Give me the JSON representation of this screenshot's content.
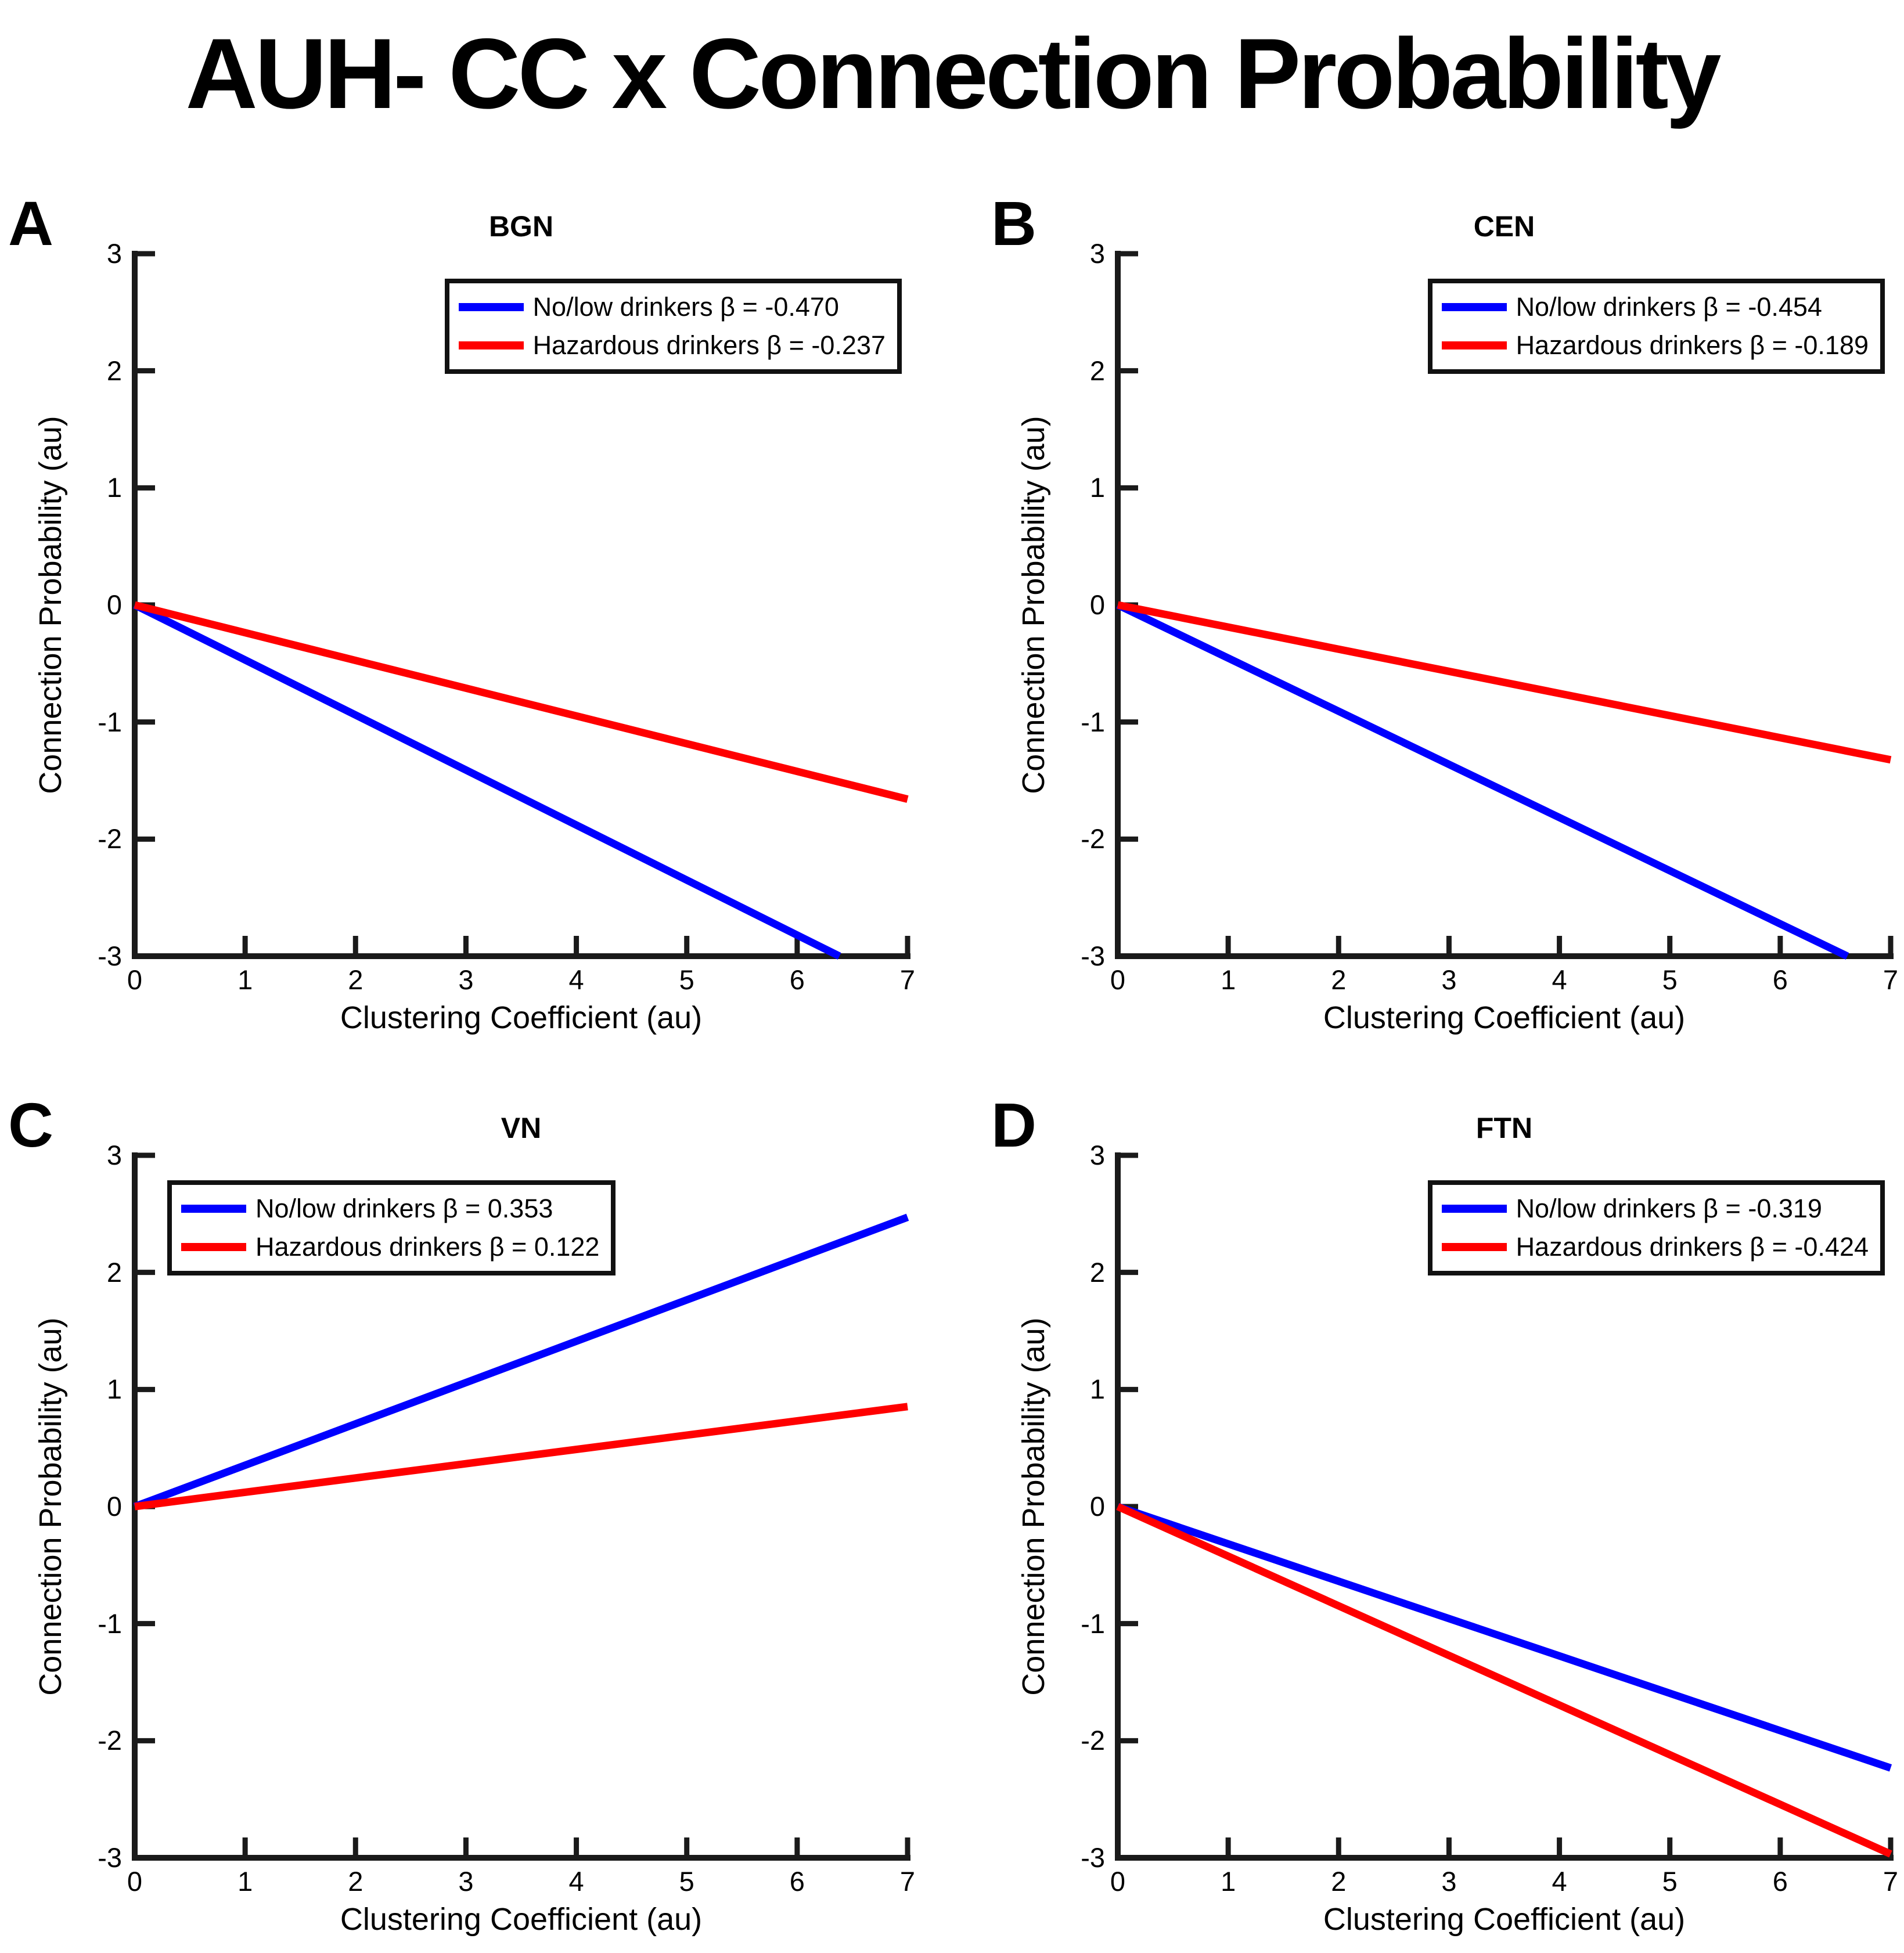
{
  "page_title": "AUH- CC x Connection Probability",
  "colors": {
    "no_low_drinkers": "#0000FF",
    "hazardous_drinkers": "#FF0000",
    "axis": "#1a1a1a",
    "background": "#ffffff"
  },
  "chart_data": [
    {
      "type": "line",
      "panel_label": "A",
      "title": "BGN",
      "xlabel": "Clustering Coefficient (au)",
      "ylabel": "Connection Probability (au)",
      "xlim": [
        0,
        7
      ],
      "ylim": [
        -3,
        3
      ],
      "xticks": [
        0,
        1,
        2,
        3,
        4,
        5,
        6,
        7
      ],
      "yticks": [
        -3,
        -2,
        -1,
        0,
        1,
        2,
        3
      ],
      "grid": false,
      "legend_position": "top-right",
      "series": [
        {
          "name": "No/low drinkers",
          "beta": -0.47,
          "legend_label": "No/low drinkers β = -0.470",
          "color": "#0000FF",
          "x": [
            0,
            6.383
          ],
          "y": [
            0,
            -3
          ]
        },
        {
          "name": "Hazardous drinkers",
          "beta": -0.237,
          "legend_label": "Hazardous drinkers β = -0.237",
          "color": "#FF0000",
          "x": [
            0,
            7
          ],
          "y": [
            0,
            -1.659
          ]
        }
      ]
    },
    {
      "type": "line",
      "panel_label": "B",
      "title": "CEN",
      "xlabel": "Clustering Coefficient (au)",
      "ylabel": "Connection Probability (au)",
      "xlim": [
        0,
        7
      ],
      "ylim": [
        -3,
        3
      ],
      "xticks": [
        0,
        1,
        2,
        3,
        4,
        5,
        6,
        7
      ],
      "yticks": [
        -3,
        -2,
        -1,
        0,
        1,
        2,
        3
      ],
      "grid": false,
      "legend_position": "top-right",
      "series": [
        {
          "name": "No/low drinkers",
          "beta": -0.454,
          "legend_label": "No/low drinkers β = -0.454",
          "color": "#0000FF",
          "x": [
            0,
            6.608
          ],
          "y": [
            0,
            -3
          ]
        },
        {
          "name": "Hazardous drinkers",
          "beta": -0.189,
          "legend_label": "Hazardous drinkers β = -0.189",
          "color": "#FF0000",
          "x": [
            0,
            7
          ],
          "y": [
            0,
            -1.323
          ]
        }
      ]
    },
    {
      "type": "line",
      "panel_label": "C",
      "title": "VN",
      "xlabel": "Clustering Coefficient (au)",
      "ylabel": "Connection Probability (au)",
      "xlim": [
        0,
        7
      ],
      "ylim": [
        -3,
        3
      ],
      "xticks": [
        0,
        1,
        2,
        3,
        4,
        5,
        6,
        7
      ],
      "yticks": [
        -3,
        -2,
        -1,
        0,
        1,
        2,
        3
      ],
      "grid": false,
      "legend_position": "top-left",
      "series": [
        {
          "name": "No/low drinkers",
          "beta": 0.353,
          "legend_label": "No/low drinkers β = 0.353",
          "color": "#0000FF",
          "x": [
            0,
            7
          ],
          "y": [
            0,
            2.471
          ]
        },
        {
          "name": "Hazardous drinkers",
          "beta": 0.122,
          "legend_label": "Hazardous drinkers β = 0.122",
          "color": "#FF0000",
          "x": [
            0,
            7
          ],
          "y": [
            0,
            0.854
          ]
        }
      ]
    },
    {
      "type": "line",
      "panel_label": "D",
      "title": "FTN",
      "xlabel": "Clustering Coefficient (au)",
      "ylabel": "Connection Probability (au)",
      "xlim": [
        0,
        7
      ],
      "ylim": [
        -3,
        3
      ],
      "xticks": [
        0,
        1,
        2,
        3,
        4,
        5,
        6,
        7
      ],
      "yticks": [
        -3,
        -2,
        -1,
        0,
        1,
        2,
        3
      ],
      "grid": false,
      "legend_position": "top-right",
      "series": [
        {
          "name": "No/low drinkers",
          "beta": -0.319,
          "legend_label": "No/low drinkers β = -0.319",
          "color": "#0000FF",
          "x": [
            0,
            7
          ],
          "y": [
            0,
            -2.233
          ]
        },
        {
          "name": "Hazardous drinkers",
          "beta": -0.424,
          "legend_label": "Hazardous drinkers β = -0.424",
          "color": "#FF0000",
          "x": [
            0,
            7
          ],
          "y": [
            0,
            -2.968
          ]
        }
      ]
    }
  ]
}
